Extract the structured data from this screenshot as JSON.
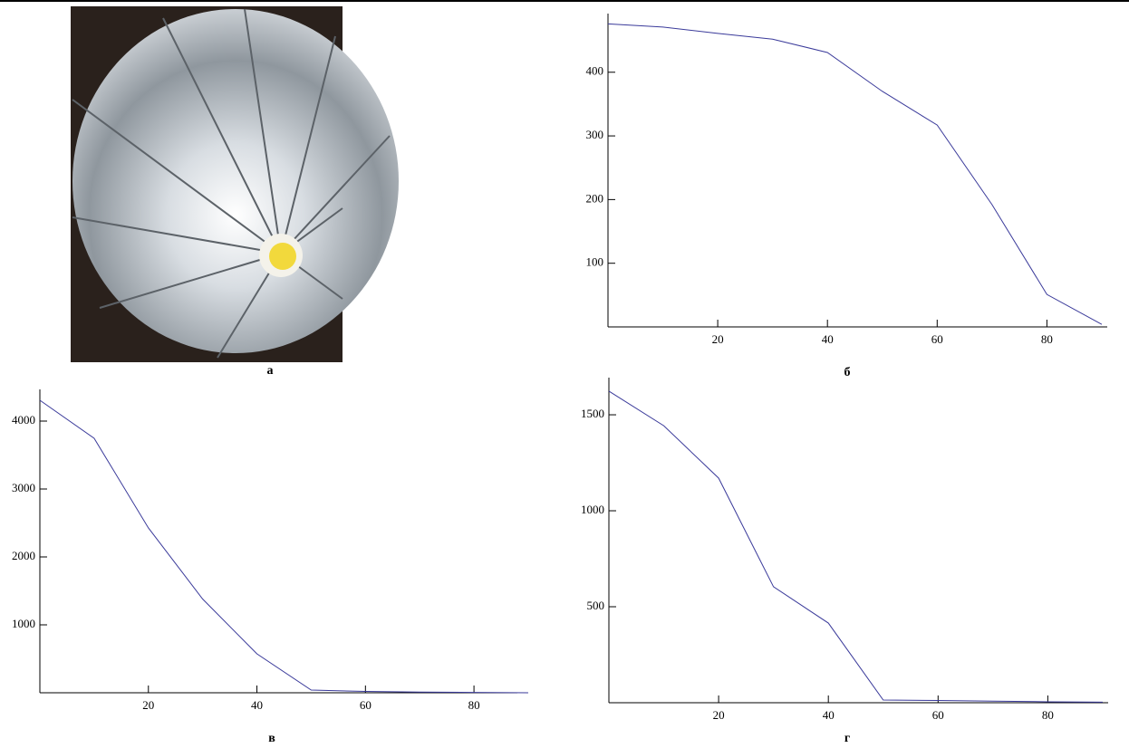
{
  "photo": {
    "caption": "а"
  },
  "chart_data": [
    {
      "type": "line",
      "caption": "б",
      "color": "#3a3a9a",
      "x": [
        0,
        10,
        20,
        30,
        40,
        50,
        60,
        70,
        80,
        90
      ],
      "values": [
        476,
        471,
        461,
        452,
        431,
        370,
        317,
        192,
        51,
        4
      ],
      "xlim": [
        0,
        91
      ],
      "ylim": [
        0,
        485
      ],
      "xticks": [
        20,
        40,
        60,
        80
      ],
      "yticks": [
        100,
        200,
        300,
        400
      ]
    },
    {
      "type": "line",
      "caption": "в",
      "color": "#3a3a9a",
      "x": [
        0,
        10,
        20,
        30,
        40,
        50,
        60,
        70,
        80,
        90
      ],
      "values": [
        4307,
        3747,
        2427,
        1380,
        573,
        40,
        20,
        10,
        5,
        0
      ],
      "xlim": [
        0,
        88
      ],
      "ylim": [
        0,
        4400
      ],
      "xticks": [
        20,
        40,
        60,
        80
      ],
      "yticks": [
        1000,
        2000,
        3000,
        4000
      ]
    },
    {
      "type": "line",
      "caption": "г",
      "color": "#3a3a9a",
      "x": [
        0,
        10,
        20,
        30,
        40,
        50,
        60,
        70,
        80,
        90
      ],
      "values": [
        1623,
        1443,
        1170,
        604,
        415,
        14,
        12,
        8,
        5,
        3
      ],
      "xlim": [
        0,
        91
      ],
      "ylim": [
        0,
        1670
      ],
      "xticks": [
        20,
        40,
        60,
        80
      ],
      "yticks": [
        500,
        1000,
        1500
      ]
    }
  ]
}
